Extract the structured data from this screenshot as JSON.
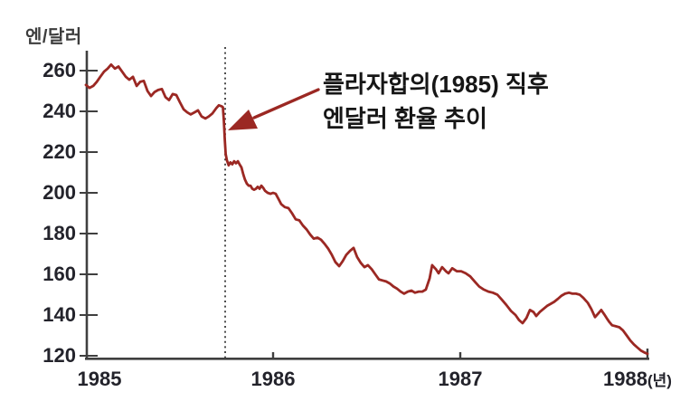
{
  "figure": {
    "background": "#ffffff",
    "colors": {
      "line": "#9b2823",
      "arrow": "#9b2823",
      "axis": "#3f3f3f",
      "tick_text": "#23232b",
      "annotation_text": "#161616",
      "event_line": "#2f2f2f",
      "unit_text": "#3d3d3d"
    }
  },
  "chart_data": {
    "type": "line",
    "title": "",
    "ylabel": "엔/달러",
    "x_suffix": "(년)",
    "grid": false,
    "legend": null,
    "xlim": [
      1985,
      1988
    ],
    "ylim": [
      120,
      260
    ],
    "y_ticks": [
      260,
      240,
      220,
      200,
      180,
      160,
      140,
      120
    ],
    "x_ticks": [
      1985,
      1986,
      1987,
      1988
    ],
    "x_tick_labels": [
      "1985",
      "1986",
      "1987",
      "1988"
    ],
    "event_line_x": 1985.744,
    "annotation": {
      "lines": [
        "플라자합의(1985) 직후",
        "엔달러 환율 추이"
      ],
      "arrow_points_to": "post-Plaza-Accord drop on the line (late 1985)"
    },
    "series": [
      {
        "name": "엔/달러 환율",
        "points": [
          [
            1985.0,
            253
          ],
          [
            1985.019,
            251.5
          ],
          [
            1985.039,
            252.5
          ],
          [
            1985.058,
            254.5
          ],
          [
            1985.077,
            257
          ],
          [
            1985.097,
            259.5
          ],
          [
            1985.116,
            261
          ],
          [
            1985.135,
            263
          ],
          [
            1985.155,
            261
          ],
          [
            1985.174,
            262
          ],
          [
            1985.193,
            259.5
          ],
          [
            1985.213,
            257
          ],
          [
            1985.232,
            255.5
          ],
          [
            1985.251,
            257
          ],
          [
            1985.271,
            252.5
          ],
          [
            1985.29,
            254.5
          ],
          [
            1985.309,
            255
          ],
          [
            1985.329,
            250
          ],
          [
            1985.348,
            247.5
          ],
          [
            1985.367,
            249.5
          ],
          [
            1985.386,
            250.5
          ],
          [
            1985.406,
            251
          ],
          [
            1985.425,
            247
          ],
          [
            1985.444,
            245.5
          ],
          [
            1985.464,
            248.5
          ],
          [
            1985.483,
            248
          ],
          [
            1985.502,
            244.5
          ],
          [
            1985.522,
            241
          ],
          [
            1985.541,
            239.5
          ],
          [
            1985.56,
            238.5
          ],
          [
            1985.58,
            239.5
          ],
          [
            1985.599,
            240.5
          ],
          [
            1985.618,
            237.5
          ],
          [
            1985.638,
            236.5
          ],
          [
            1985.657,
            237.5
          ],
          [
            1985.676,
            239
          ],
          [
            1985.696,
            241.5
          ],
          [
            1985.71,
            243
          ],
          [
            1985.725,
            242.5
          ],
          [
            1985.732,
            242
          ],
          [
            1985.737,
            235
          ],
          [
            1985.742,
            226
          ],
          [
            1985.747,
            219
          ],
          [
            1985.753,
            216
          ],
          [
            1985.763,
            213.5
          ],
          [
            1985.772,
            215
          ],
          [
            1985.782,
            214
          ],
          [
            1985.792,
            215.5
          ],
          [
            1985.802,
            214.5
          ],
          [
            1985.812,
            215.5
          ],
          [
            1985.821,
            214
          ],
          [
            1985.831,
            212.5
          ],
          [
            1985.841,
            209
          ],
          [
            1985.85,
            206.5
          ],
          [
            1985.86,
            204.5
          ],
          [
            1985.87,
            203.5
          ],
          [
            1985.879,
            203.5
          ],
          [
            1985.889,
            202
          ],
          [
            1985.899,
            201.5
          ],
          [
            1985.908,
            202
          ],
          [
            1985.918,
            203
          ],
          [
            1985.928,
            202
          ],
          [
            1985.937,
            203.5
          ],
          [
            1985.947,
            202.5
          ],
          [
            1985.957,
            201
          ],
          [
            1985.971,
            200
          ],
          [
            1985.986,
            199.5
          ],
          [
            1986.0,
            200
          ],
          [
            1986.014,
            199.5
          ],
          [
            1986.029,
            197
          ],
          [
            1986.043,
            194.5
          ],
          [
            1986.063,
            193
          ],
          [
            1986.082,
            192.5
          ],
          [
            1986.101,
            190
          ],
          [
            1986.121,
            187
          ],
          [
            1986.14,
            186.5
          ],
          [
            1986.159,
            184
          ],
          [
            1986.179,
            182
          ],
          [
            1986.198,
            179.5
          ],
          [
            1986.217,
            177.5
          ],
          [
            1986.237,
            178
          ],
          [
            1986.256,
            177
          ],
          [
            1986.275,
            175
          ],
          [
            1986.295,
            172.5
          ],
          [
            1986.314,
            169.5
          ],
          [
            1986.333,
            166
          ],
          [
            1986.353,
            164
          ],
          [
            1986.372,
            166.5
          ],
          [
            1986.391,
            169.5
          ],
          [
            1986.411,
            171.5
          ],
          [
            1986.43,
            173
          ],
          [
            1986.449,
            168.5
          ],
          [
            1986.469,
            165.5
          ],
          [
            1986.488,
            163.5
          ],
          [
            1986.507,
            164.5
          ],
          [
            1986.527,
            162.5
          ],
          [
            1986.546,
            160
          ],
          [
            1986.565,
            157.5
          ],
          [
            1986.585,
            157
          ],
          [
            1986.604,
            156.5
          ],
          [
            1986.623,
            155.5
          ],
          [
            1986.643,
            154
          ],
          [
            1986.662,
            153
          ],
          [
            1986.681,
            151.5
          ],
          [
            1986.7,
            150.5
          ],
          [
            1986.72,
            151.5
          ],
          [
            1986.739,
            152
          ],
          [
            1986.758,
            151
          ],
          [
            1986.778,
            151.5
          ],
          [
            1986.797,
            151.5
          ],
          [
            1986.816,
            152.5
          ],
          [
            1986.836,
            158
          ],
          [
            1986.85,
            164.5
          ],
          [
            1986.87,
            162.5
          ],
          [
            1986.884,
            160.5
          ],
          [
            1986.903,
            163.5
          ],
          [
            1986.923,
            161.5
          ],
          [
            1986.937,
            160.5
          ],
          [
            1986.957,
            163
          ],
          [
            1986.981,
            161.5
          ],
          [
            1987.005,
            161.5
          ],
          [
            1987.029,
            160.5
          ],
          [
            1987.053,
            159
          ],
          [
            1987.077,
            156.5
          ],
          [
            1987.101,
            154
          ],
          [
            1987.126,
            152.5
          ],
          [
            1987.15,
            151.5
          ],
          [
            1987.174,
            151
          ],
          [
            1987.198,
            150
          ],
          [
            1987.222,
            147.5
          ],
          [
            1987.246,
            145
          ],
          [
            1987.271,
            142
          ],
          [
            1987.295,
            140
          ],
          [
            1987.314,
            137.5
          ],
          [
            1987.333,
            136
          ],
          [
            1987.353,
            138.5
          ],
          [
            1987.372,
            142.5
          ],
          [
            1987.391,
            141.5
          ],
          [
            1987.406,
            139.5
          ],
          [
            1987.425,
            141.5
          ],
          [
            1987.444,
            143
          ],
          [
            1987.464,
            144.5
          ],
          [
            1987.483,
            145.5
          ],
          [
            1987.502,
            146.5
          ],
          [
            1987.522,
            148
          ],
          [
            1987.541,
            149.5
          ],
          [
            1987.56,
            150.5
          ],
          [
            1987.58,
            151
          ],
          [
            1987.599,
            150.5
          ],
          [
            1987.618,
            150.5
          ],
          [
            1987.638,
            150
          ],
          [
            1987.657,
            148.5
          ],
          [
            1987.681,
            146
          ],
          [
            1987.7,
            143
          ],
          [
            1987.72,
            139
          ],
          [
            1987.739,
            141
          ],
          [
            1987.753,
            142.5
          ],
          [
            1987.768,
            140.5
          ],
          [
            1987.782,
            138.5
          ],
          [
            1987.797,
            136.5
          ],
          [
            1987.811,
            135
          ],
          [
            1987.831,
            134.5
          ],
          [
            1987.85,
            134
          ],
          [
            1987.869,
            132.5
          ],
          [
            1987.889,
            130
          ],
          [
            1987.908,
            127.5
          ],
          [
            1987.928,
            125.5
          ],
          [
            1987.947,
            124
          ],
          [
            1987.966,
            122.5
          ],
          [
            1987.986,
            121.5
          ],
          [
            1988.0,
            121
          ]
        ]
      }
    ]
  }
}
